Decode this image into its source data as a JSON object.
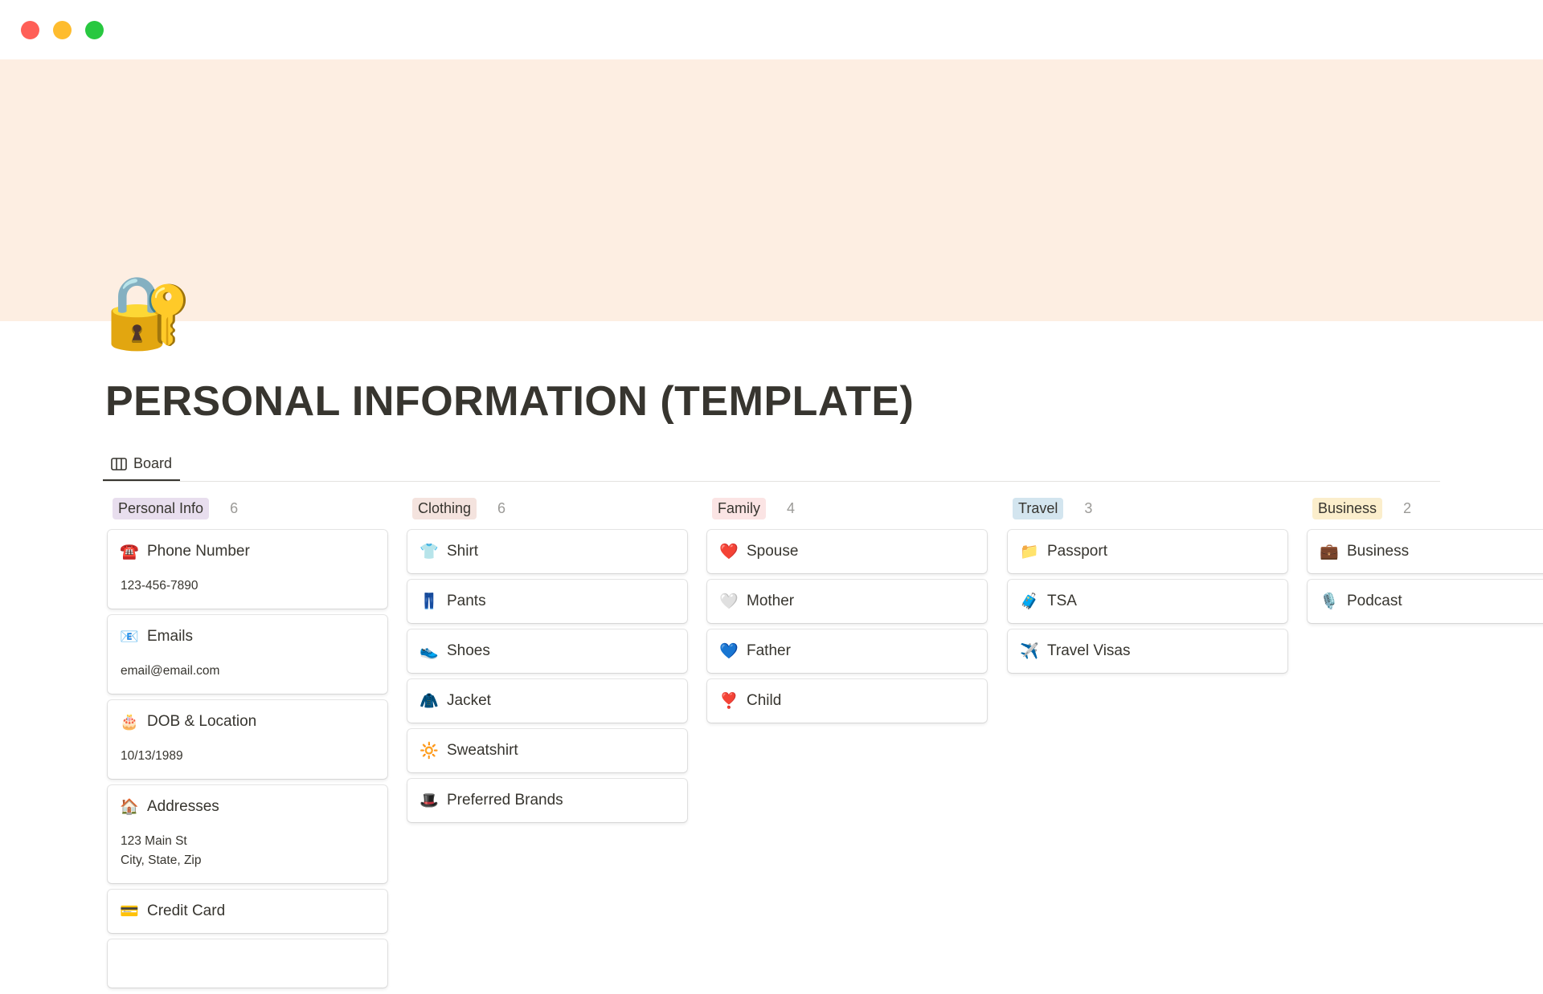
{
  "window": {
    "controls": [
      {
        "name": "close",
        "color": "#ff5f57"
      },
      {
        "name": "minimize",
        "color": "#febc2e"
      },
      {
        "name": "zoom",
        "color": "#28c840"
      }
    ]
  },
  "banner": {
    "color": "#fdeee2"
  },
  "page": {
    "icon": "🔐",
    "title": "PERSONAL INFORMATION (TEMPLATE)"
  },
  "view_tab": {
    "label": "Board",
    "icon": "board-icon"
  },
  "columns": [
    {
      "label": "Personal Info",
      "count": "6",
      "color": "#e8deee",
      "cards": [
        {
          "icon": "☎️",
          "title": "Phone Number",
          "lines": [
            "123-456-7890"
          ]
        },
        {
          "icon": "📧",
          "title": "Emails",
          "lines": [
            "email@email.com"
          ]
        },
        {
          "icon": "🎂",
          "title": "DOB & Location",
          "lines": [
            "10/13/1989"
          ]
        },
        {
          "icon": "🏠",
          "title": "Addresses",
          "lines": [
            "123 Main St",
            "City, State, Zip"
          ]
        },
        {
          "icon": "💳",
          "title": "Credit Card",
          "lines": []
        }
      ]
    },
    {
      "label": "Clothing",
      "count": "6",
      "color": "#f4e3de",
      "cards": [
        {
          "icon": "👕",
          "title": "Shirt"
        },
        {
          "icon": "👖",
          "title": "Pants"
        },
        {
          "icon": "👟",
          "title": "Shoes"
        },
        {
          "icon": "🧥",
          "title": "Jacket"
        },
        {
          "icon": "🔆",
          "title": "Sweatshirt"
        },
        {
          "icon": "🎩",
          "title": "Preferred Brands"
        }
      ]
    },
    {
      "label": "Family",
      "count": "4",
      "color": "#fbe4e4",
      "cards": [
        {
          "icon": "❤️",
          "title": "Spouse"
        },
        {
          "icon": "🤍",
          "title": "Mother"
        },
        {
          "icon": "💙",
          "title": "Father"
        },
        {
          "icon": "❣️",
          "title": "Child"
        }
      ]
    },
    {
      "label": "Travel",
      "count": "3",
      "color": "#d3e5ef",
      "cards": [
        {
          "icon": "📁",
          "title": "Passport"
        },
        {
          "icon": "🧳",
          "title": "TSA"
        },
        {
          "icon": "✈️",
          "title": "Travel Visas"
        }
      ]
    },
    {
      "label": "Business",
      "count": "2",
      "color": "#fbeecc",
      "cards": [
        {
          "icon": "💼",
          "title": "Business"
        },
        {
          "icon": "🎙️",
          "title": "Podcast"
        }
      ]
    }
  ]
}
